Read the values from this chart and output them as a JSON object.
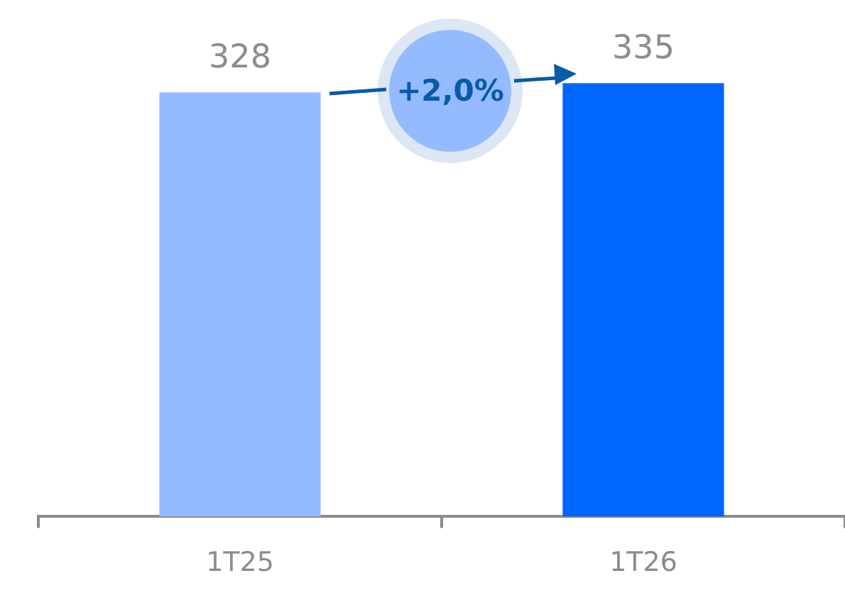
{
  "chart_data": {
    "type": "bar",
    "categories": [
      "1T25",
      "1T26"
    ],
    "values": [
      328,
      335
    ],
    "colors": [
      "#94bbff",
      "#0066ff"
    ],
    "data_labels": true,
    "annotations": [
      "+2,0%"
    ]
  }
}
